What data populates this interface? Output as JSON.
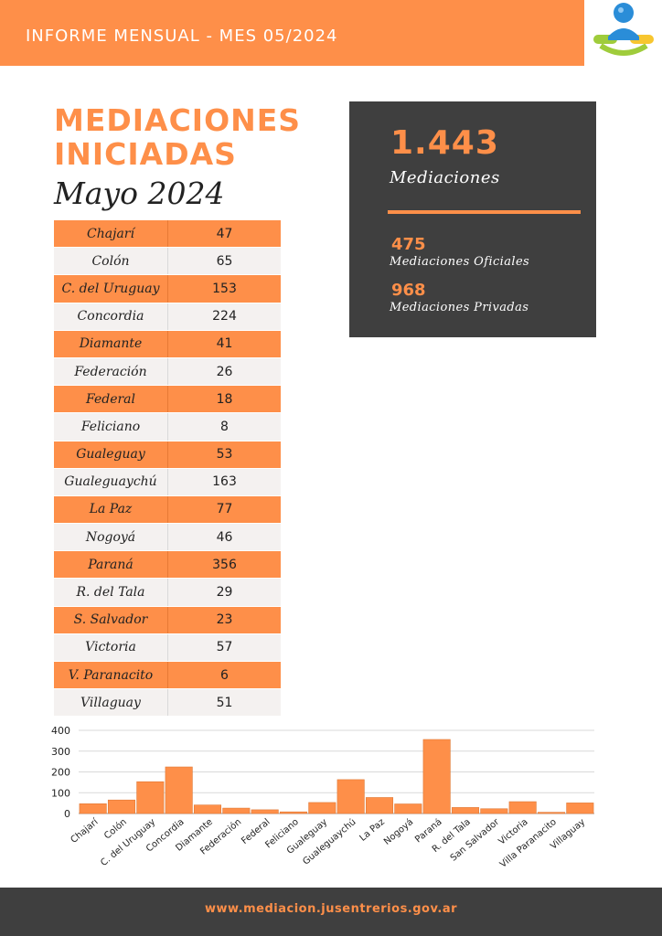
{
  "header": {
    "banner_text": "INFORME MENSUAL - MES 05/2024",
    "logo_icon": "mediation-handshake-logo-icon"
  },
  "title": {
    "line1": "MEDIACIONES",
    "line2": "INICIADAS",
    "subtitle": "Mayo 2024"
  },
  "table": {
    "rows": [
      {
        "name": "Chajarí",
        "value": "47"
      },
      {
        "name": "Colón",
        "value": "65"
      },
      {
        "name": "C. del Uruguay",
        "value": "153"
      },
      {
        "name": "Concordia",
        "value": "224"
      },
      {
        "name": "Diamante",
        "value": "41"
      },
      {
        "name": "Federación",
        "value": "26"
      },
      {
        "name": "Federal",
        "value": "18"
      },
      {
        "name": "Feliciano",
        "value": "8"
      },
      {
        "name": "Gualeguay",
        "value": "53"
      },
      {
        "name": "Gualeguaychú",
        "value": "163"
      },
      {
        "name": "La Paz",
        "value": "77"
      },
      {
        "name": "Nogoyá",
        "value": "46"
      },
      {
        "name": "Paraná",
        "value": "356"
      },
      {
        "name": "R. del Tala",
        "value": "29"
      },
      {
        "name": "S. Salvador",
        "value": "23"
      },
      {
        "name": "Victoria",
        "value": "57"
      },
      {
        "name": "V. Paranacito",
        "value": "6"
      },
      {
        "name": "Villaguay",
        "value": "51"
      }
    ]
  },
  "stats": {
    "total_value": "1.443",
    "total_label": "Mediaciones",
    "oficiales_value": "475",
    "oficiales_label": "Mediaciones Oficiales",
    "privadas_value": "968",
    "privadas_label": "Mediaciones Privadas"
  },
  "colors": {
    "accent": "#fe8f49",
    "dark": "#3f3f3f",
    "light_row": "#f4f1f0"
  },
  "chart_data": {
    "type": "bar",
    "categories": [
      "Chajarí",
      "Colón",
      "C. del Uruguay",
      "Concordia",
      "Diamante",
      "Federación",
      "Federal",
      "Feliciano",
      "Gualeguay",
      "Gualeguaychú",
      "La Paz",
      "Nogoyá",
      "Paraná",
      "R. del Tala",
      "San Salvador",
      "Victoria",
      "Villa Paranacito",
      "Villaguay"
    ],
    "values": [
      47,
      65,
      153,
      224,
      41,
      26,
      18,
      8,
      53,
      163,
      77,
      46,
      356,
      29,
      23,
      57,
      6,
      51
    ],
    "yticks": [
      "0",
      "100",
      "200",
      "300",
      "400"
    ],
    "ylim": [
      0,
      400
    ],
    "grid": true,
    "color": "#fe8f49"
  },
  "footer": {
    "url": "www.mediacion.jusentrerios.gov.ar"
  }
}
